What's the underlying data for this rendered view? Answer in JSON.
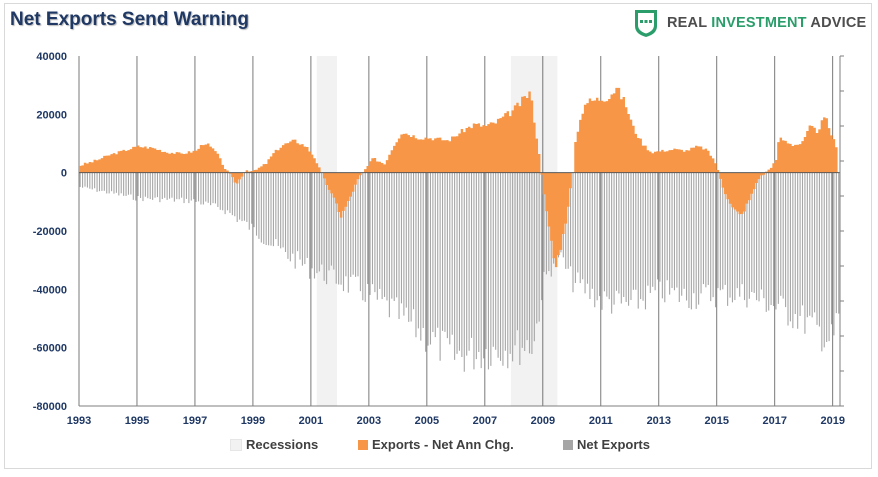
{
  "title": "Net Exports Send Warning",
  "logo": {
    "word1": "REAL",
    "word2": "INVESTMENT",
    "word3": "ADVICE",
    "green": "#2a9d6a",
    "gray": "#4d4d4d"
  },
  "legend": {
    "recessions": "Recessions",
    "exports": "Exports - Net Ann Chg.",
    "net_exports": "Net Exports"
  },
  "colors": {
    "title": "#1f3864",
    "exports": "#f79646",
    "net_exports": "#a6a6a6",
    "recession": "#f2f2f2",
    "axis_text": "#1f3864"
  },
  "chart_data": {
    "type": "area",
    "title": "Net Exports Send Warning",
    "xlabel": "",
    "ylabel": "",
    "xlim": [
      1993.0,
      2019.25
    ],
    "ylim": [
      -80000,
      40000
    ],
    "y_ticks": [
      "40000",
      "20000",
      "0",
      "-20000",
      "-40000",
      "-60000",
      "-80000"
    ],
    "x_ticks": [
      "1993",
      "1995",
      "1997",
      "1999",
      "2001",
      "2003",
      "2005",
      "2007",
      "2009",
      "2011",
      "2013",
      "2015",
      "2017",
      "2019"
    ],
    "grid": "vertical",
    "legend_position": "bottom",
    "recessions": [
      [
        2001.2,
        2001.9
      ],
      [
        2007.9,
        2009.5
      ]
    ],
    "series": [
      {
        "name": "Exports - Net Ann Chg.",
        "type": "area",
        "x": [
          1993.0,
          1993.5,
          1994.0,
          1994.5,
          1995.0,
          1995.5,
          1996.0,
          1996.5,
          1997.0,
          1997.3,
          1997.7,
          1998.0,
          1998.4,
          1998.7,
          1999.0,
          1999.4,
          1999.7,
          2000.0,
          2000.4,
          2000.8,
          2001.1,
          2001.4,
          2001.8,
          2002.0,
          2002.3,
          2002.6,
          2002.9,
          2003.1,
          2003.5,
          2003.8,
          2004.1,
          2004.4,
          2004.7,
          2005.0,
          2005.4,
          2005.7,
          2006.0,
          2006.3,
          2006.6,
          2007.0,
          2007.3,
          2007.6,
          2007.9,
          2008.2,
          2008.5,
          2008.6,
          2008.85,
          2009.1,
          2009.4,
          2009.7,
          2010.0,
          2010.1,
          2010.4,
          2010.8,
          2011.2,
          2011.5,
          2011.8,
          2012.1,
          2012.4,
          2012.7,
          2013.1,
          2013.5,
          2013.9,
          2014.3,
          2014.6,
          2014.9,
          2015.2,
          2015.5,
          2015.8,
          2016.1,
          2016.4,
          2016.7,
          2017.0,
          2017.1,
          2017.3,
          2017.6,
          2017.9,
          2018.2,
          2018.4,
          2018.7,
          2019.0,
          2019.2
        ],
        "values": [
          2500,
          4000,
          6000,
          7500,
          9000,
          8500,
          7000,
          6500,
          7500,
          10500,
          7000,
          1500,
          -4000,
          1000,
          500,
          3000,
          7000,
          9500,
          11000,
          9000,
          5000,
          -2000,
          -10000,
          -15000,
          -9000,
          -2000,
          2000,
          5000,
          3000,
          9000,
          14000,
          13000,
          12000,
          12000,
          11500,
          11000,
          13000,
          15000,
          16500,
          16000,
          17000,
          19000,
          21000,
          24000,
          27500,
          23000,
          5000,
          -15000,
          -33000,
          -20000,
          0,
          12000,
          24000,
          25000,
          26000,
          29000,
          24000,
          15000,
          10000,
          7000,
          7500,
          8000,
          7500,
          9000,
          8000,
          4000,
          -6000,
          -12000,
          -15000,
          -9000,
          -2000,
          500,
          4000,
          12000,
          11000,
          9500,
          10000,
          16000,
          14000,
          19000,
          11000,
          5000
        ]
      },
      {
        "name": "Net Exports",
        "type": "bar",
        "x": [
          1993.0,
          1994.0,
          1995.0,
          1996.0,
          1997.0,
          1998.0,
          1999.0,
          2000.0,
          2001.0,
          2002.0,
          2003.0,
          2004.0,
          2005.0,
          2006.0,
          2007.0,
          2008.0,
          2008.7,
          2009.0,
          2009.5,
          2010.0,
          2011.0,
          2012.0,
          2013.0,
          2014.0,
          2015.0,
          2016.0,
          2017.0,
          2018.0,
          2018.5,
          2019.0,
          2019.2
        ],
        "values": [
          -5000,
          -7000,
          -9000,
          -9500,
          -10000,
          -13000,
          -20000,
          -28000,
          -34000,
          -38000,
          -43000,
          -50000,
          -58000,
          -65000,
          -63000,
          -62000,
          -60000,
          -40000,
          -28000,
          -38000,
          -45000,
          -47000,
          -42000,
          -44000,
          -43000,
          -43000,
          -47000,
          -52000,
          -56000,
          -60000,
          -50000
        ]
      }
    ]
  }
}
